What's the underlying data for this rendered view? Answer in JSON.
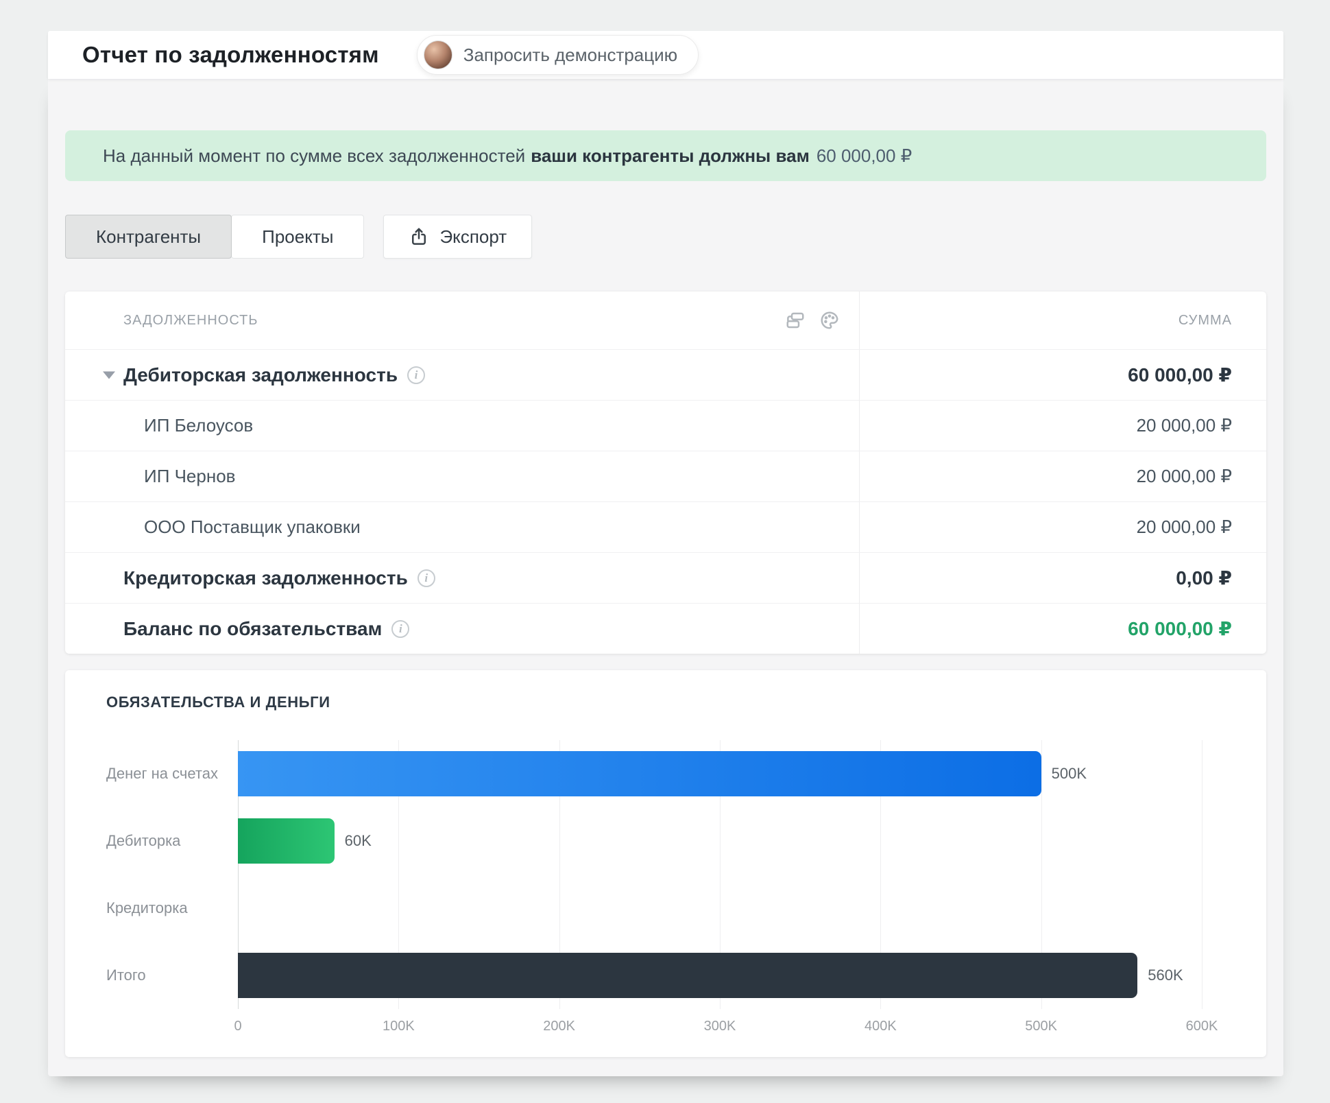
{
  "header": {
    "title": "Отчет по задолженностям",
    "demo_button_label": "Запросить демонстрацию"
  },
  "banner": {
    "text_regular": "На данный момент по сумме всех задолженностей",
    "text_bold": "ваши контрагенты должны вам",
    "amount": "60 000,00 ₽"
  },
  "tabs": [
    {
      "label": "Контрагенты",
      "active": true
    },
    {
      "label": "Проекты",
      "active": false
    }
  ],
  "export_button": {
    "label": "Экспорт",
    "icon": "export-icon"
  },
  "table": {
    "columns": {
      "left": "ЗАДОЛЖЕННОСТЬ",
      "right": "СУММА"
    },
    "header_icons": [
      "grouping-icon",
      "palette-icon"
    ],
    "rows": [
      {
        "label": "Дебиторская задолженность",
        "value": "60 000,00 ₽",
        "type": "group",
        "has_arrow": true,
        "has_info": true
      },
      {
        "label": "ИП Белоусов",
        "value": "20 000,00 ₽",
        "type": "sub"
      },
      {
        "label": "ИП Чернов",
        "value": "20 000,00 ₽",
        "type": "sub"
      },
      {
        "label": "ООО Поставщик упаковки",
        "value": "20 000,00 ₽",
        "type": "sub"
      },
      {
        "label": "Кредиторская задолженность",
        "value": "0,00 ₽",
        "type": "group",
        "has_info": true
      },
      {
        "label": "Баланс по обязательствам",
        "value": "60 000,00 ₽",
        "type": "group",
        "has_info": true,
        "value_color": "green"
      }
    ]
  },
  "chart_data": {
    "type": "bar",
    "orientation": "horizontal",
    "title": "ОБЯЗАТЕЛЬСТВА И ДЕНЬГИ",
    "categories": [
      "Денег на счетах",
      "Дебиторка",
      "Кредиторка",
      "Итого"
    ],
    "values": [
      500000,
      60000,
      0,
      560000
    ],
    "value_labels": [
      "500K",
      "60K",
      "",
      "560K"
    ],
    "xlim": [
      0,
      600000
    ],
    "x_ticks": [
      "0",
      "100K",
      "200K",
      "300K",
      "400K",
      "500K",
      "600K"
    ],
    "grid": true,
    "legend": "none",
    "bar_styles": [
      "blue-gradient",
      "green-gradient",
      "none",
      "dark"
    ]
  },
  "colors": {
    "banner_bg": "#d4f0de",
    "positive_green": "#22a368",
    "bar_blue_start": "#3795f3",
    "bar_blue_end": "#0c6ee5",
    "bar_green_start": "#15a45d",
    "bar_green_end": "#2dc674",
    "bar_dark": "#2c3640"
  }
}
